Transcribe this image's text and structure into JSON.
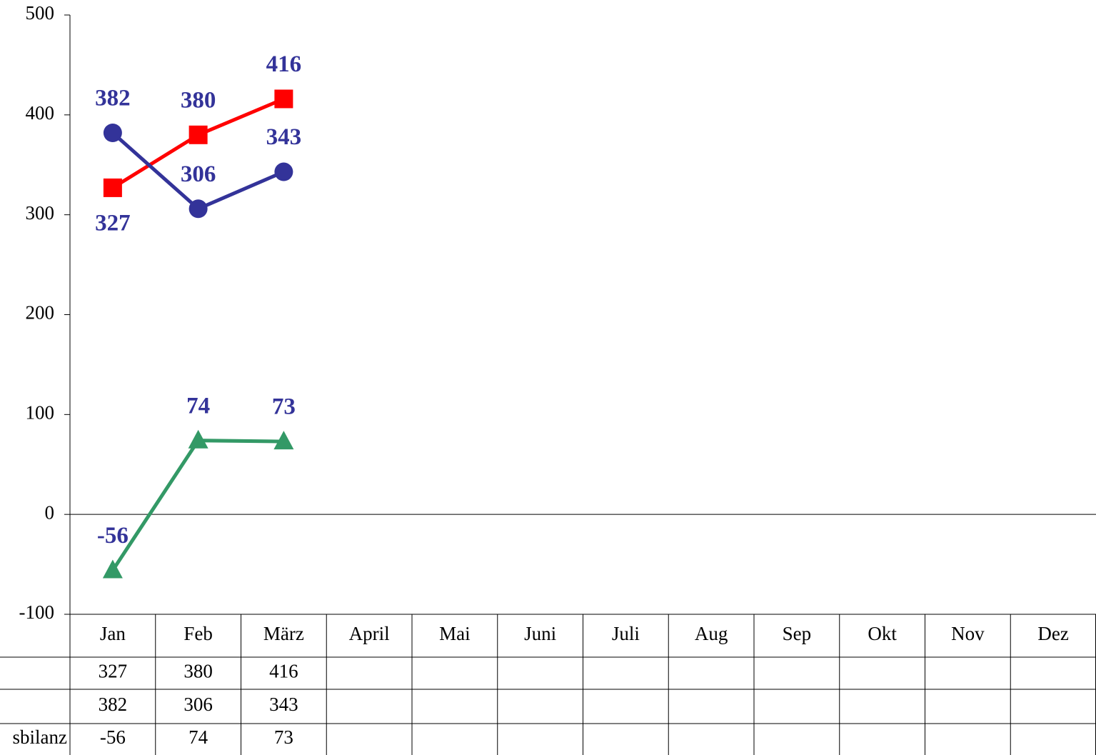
{
  "chart_data": {
    "type": "line",
    "categories": [
      "Jan",
      "Feb",
      "März",
      "April",
      "Mai",
      "Juni",
      "Juli",
      "Aug",
      "Sep",
      "Okt",
      "Nov",
      "Dez"
    ],
    "series": [
      {
        "color": "#ff0000",
        "marker": "square",
        "values": [
          327,
          380,
          416,
          null,
          null,
          null,
          null,
          null,
          null,
          null,
          null,
          null
        ]
      },
      {
        "color": "#333399",
        "marker": "circle",
        "values": [
          382,
          306,
          343,
          null,
          null,
          null,
          null,
          null,
          null,
          null,
          null,
          null
        ]
      },
      {
        "name": "sbilanz",
        "color": "#339966",
        "marker": "triangle",
        "values": [
          -56,
          74,
          73,
          null,
          null,
          null,
          null,
          null,
          null,
          null,
          null,
          null
        ]
      }
    ],
    "ylim": [
      -100,
      500
    ],
    "yticks": [
      -100,
      0,
      100,
      200,
      300,
      400,
      500
    ],
    "grid": false,
    "data_table": true
  }
}
